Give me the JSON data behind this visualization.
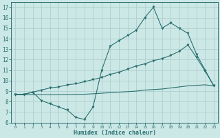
{
  "xlabel": "Humidex (Indice chaleur)",
  "bg_color": "#cce8e6",
  "grid_color": "#aecfcd",
  "line_color": "#2a7070",
  "xlim": [
    -0.5,
    23.5
  ],
  "ylim": [
    6,
    17.5
  ],
  "xticks": [
    0,
    1,
    2,
    3,
    4,
    5,
    6,
    7,
    8,
    9,
    10,
    11,
    12,
    13,
    14,
    15,
    16,
    17,
    18,
    19,
    20,
    21,
    22,
    23
  ],
  "yticks": [
    6,
    7,
    8,
    9,
    10,
    11,
    12,
    13,
    14,
    15,
    16,
    17
  ],
  "line1_x": [
    0,
    1,
    2,
    3,
    4,
    5,
    6,
    7,
    8,
    9,
    10,
    11,
    12,
    13,
    14,
    15,
    16,
    17,
    18,
    19,
    20,
    21,
    22,
    23
  ],
  "line1_y": [
    8.7,
    8.7,
    8.9,
    8.1,
    7.8,
    7.5,
    7.2,
    6.5,
    6.3,
    7.5,
    11.0,
    13.3,
    13.8,
    14.3,
    14.8,
    16.0,
    17.0,
    15.0,
    15.5,
    15.0,
    14.5,
    12.5,
    11.0,
    9.5
  ],
  "line2_x": [
    0,
    1,
    2,
    3,
    4,
    5,
    6,
    7,
    8,
    9,
    10,
    11,
    12,
    13,
    14,
    15,
    16,
    17,
    18,
    19,
    20,
    21,
    22,
    23
  ],
  "line2_y": [
    8.7,
    8.7,
    8.9,
    9.1,
    9.3,
    9.4,
    9.6,
    9.7,
    9.9,
    10.1,
    10.3,
    10.6,
    10.8,
    11.1,
    11.4,
    11.6,
    11.9,
    12.1,
    12.4,
    12.8,
    13.4,
    12.2,
    10.9,
    9.5
  ],
  "line3_x": [
    0,
    1,
    2,
    3,
    4,
    5,
    6,
    7,
    8,
    9,
    10,
    11,
    12,
    13,
    14,
    15,
    16,
    17,
    18,
    19,
    20,
    21,
    22,
    23
  ],
  "line3_y": [
    8.65,
    8.65,
    8.65,
    8.65,
    8.65,
    8.65,
    8.65,
    8.7,
    8.7,
    8.75,
    8.8,
    8.85,
    8.9,
    8.95,
    9.0,
    9.1,
    9.15,
    9.2,
    9.3,
    9.4,
    9.5,
    9.55,
    9.6,
    9.5
  ]
}
